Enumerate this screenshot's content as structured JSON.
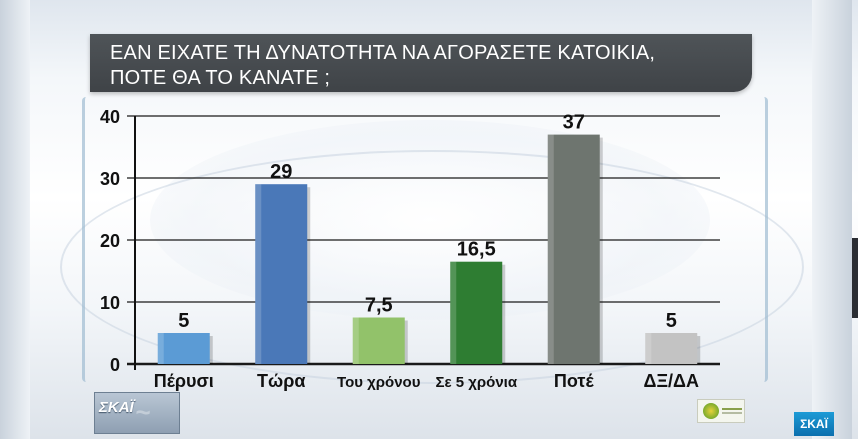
{
  "title_lines": [
    "ΕΑΝ ΕΙΧΑΤΕ ΤΗ ΔΥΝΑΤΟΤΗΤΑ ΝΑ ΑΓΟΡΑΣΕΤΕ ΚΑΤΟΙΚΙΑ,",
    "ΠΟΤΕ ΘΑ ΤΟ ΚΑΝΑΤΕ ;"
  ],
  "logos": {
    "bottom_left": "ΣΚΑΪ",
    "corner": "ΣΚΑΪ"
  },
  "colors": {
    "title_bg": "#474b4f",
    "grid": "#1a1a1a"
  },
  "chart_data": {
    "type": "bar",
    "title": "ΕΑΝ ΕΙΧΑΤΕ ΤΗ ΔΥΝΑΤΟΤΗΤΑ ΝΑ ΑΓΟΡΑΣΕΤΕ ΚΑΤΟΙΚΙΑ, ΠΟΤΕ ΘΑ ΤΟ ΚΑΝΑΤΕ ;",
    "categories": [
      "Πέρυσι",
      "Τώρα",
      "Του χρόνου",
      "Σε 5 χρόνια",
      "Ποτέ",
      "ΔΞ/ΔΑ"
    ],
    "values": [
      5,
      29,
      7.5,
      16.5,
      37,
      5
    ],
    "value_labels": [
      "5",
      "29",
      "7,5",
      "16,5",
      "37",
      "5"
    ],
    "bar_colors": [
      "#5b9bd5",
      "#4a78b8",
      "#92c26a",
      "#2e7d32",
      "#6e756f",
      "#c3c3c3"
    ],
    "ylim": [
      0,
      40
    ],
    "yticks": [
      0,
      10,
      20,
      30,
      40
    ],
    "grid": true,
    "xlabel": "",
    "ylabel": ""
  }
}
